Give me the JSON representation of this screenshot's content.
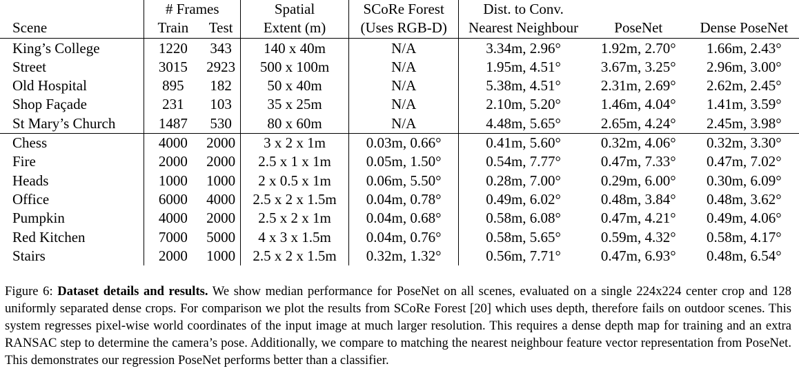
{
  "table": {
    "header_top": {
      "frames": "# Frames",
      "spatial": "Spatial",
      "score": "SCoRe Forest",
      "dist": "Dist. to Conv."
    },
    "header_bottom": {
      "scene": "Scene",
      "train": "Train",
      "test": "Test",
      "extent": "Extent (m)",
      "score": "(Uses RGB-D)",
      "nn": "Nearest Neighbour",
      "posenet": "PoseNet",
      "dense": "Dense PoseNet"
    },
    "outdoor_rows": [
      {
        "scene": "King’s College",
        "train": "1220",
        "test": "343",
        "extent": "140 x 40m",
        "score": "N/A",
        "nn": "3.34m, 2.96°",
        "posenet": "1.92m, 2.70°",
        "dense": "1.66m, 2.43°"
      },
      {
        "scene": "Street",
        "train": "3015",
        "test": "2923",
        "extent": "500 x 100m",
        "score": "N/A",
        "nn": "1.95m, 4.51°",
        "posenet": "3.67m, 3.25°",
        "dense": "2.96m, 3.00°"
      },
      {
        "scene": "Old Hospital",
        "train": "895",
        "test": "182",
        "extent": "50 x 40m",
        "score": "N/A",
        "nn": "5.38m, 4.51°",
        "posenet": "2.31m, 2.69°",
        "dense": "2.62m, 2.45°"
      },
      {
        "scene": "Shop Façade",
        "train": "231",
        "test": "103",
        "extent": "35 x 25m",
        "score": "N/A",
        "nn": "2.10m, 5.20°",
        "posenet": "1.46m, 4.04°",
        "dense": "1.41m, 3.59°"
      },
      {
        "scene": "St Mary’s Church",
        "train": "1487",
        "test": "530",
        "extent": "80 x 60m",
        "score": "N/A",
        "nn": "4.48m, 5.65°",
        "posenet": "2.65m, 4.24°",
        "dense": "2.45m, 3.98°"
      }
    ],
    "indoor_rows": [
      {
        "scene": "Chess",
        "train": "4000",
        "test": "2000",
        "extent": "3 x 2 x 1m",
        "score": "0.03m, 0.66°",
        "nn": "0.41m, 5.60°",
        "posenet": "0.32m, 4.06°",
        "dense": "0.32m, 3.30°"
      },
      {
        "scene": "Fire",
        "train": "2000",
        "test": "2000",
        "extent": "2.5 x 1 x 1m",
        "score": "0.05m, 1.50°",
        "nn": "0.54m, 7.77°",
        "posenet": "0.47m, 7.33°",
        "dense": "0.47m, 7.02°"
      },
      {
        "scene": "Heads",
        "train": "1000",
        "test": "1000",
        "extent": "2 x 0.5 x 1m",
        "score": "0.06m, 5.50°",
        "nn": "0.28m, 7.00°",
        "posenet": "0.29m, 6.00°",
        "dense": "0.30m, 6.09°"
      },
      {
        "scene": "Office",
        "train": "6000",
        "test": "4000",
        "extent": "2.5 x 2 x 1.5m",
        "score": "0.04m, 0.78°",
        "nn": "0.49m, 6.02°",
        "posenet": "0.48m, 3.84°",
        "dense": "0.48m, 3.62°"
      },
      {
        "scene": "Pumpkin",
        "train": "4000",
        "test": "2000",
        "extent": "2.5 x 2 x 1m",
        "score": "0.04m, 0.68°",
        "nn": "0.58m, 6.08°",
        "posenet": "0.47m, 4.21°",
        "dense": "0.49m, 4.06°"
      },
      {
        "scene": "Red Kitchen",
        "train": "7000",
        "test": "5000",
        "extent": "4 x 3 x 1.5m",
        "score": "0.04m, 0.76°",
        "nn": "0.58m, 5.65°",
        "posenet": "0.59m, 4.32°",
        "dense": "0.58m, 4.17°"
      },
      {
        "scene": "Stairs",
        "train": "2000",
        "test": "1000",
        "extent": "2.5 x 2 x 1.5m",
        "score": "0.32m, 1.32°",
        "nn": "0.56m, 7.71°",
        "posenet": "0.47m, 6.93°",
        "dense": "0.48m, 6.54°"
      }
    ]
  },
  "caption": {
    "prefix": "Figure 6: ",
    "bold": "Dataset details and results.",
    "text": " We show median performance for PoseNet on all scenes, evaluated on a single 224x224 center crop and 128 uniformly separated dense crops. For comparison we plot the results from SCoRe Forest [20] which uses depth, therefore fails on outdoor scenes. This system regresses pixel-wise world coordinates of the input image at much larger resolution. This requires a dense depth map for training and an extra RANSAC step to determine the camera’s pose. Additionally, we compare to matching the nearest neighbour feature vector representation from PoseNet. This demonstrates our regression PoseNet performs better than a classifier."
  }
}
